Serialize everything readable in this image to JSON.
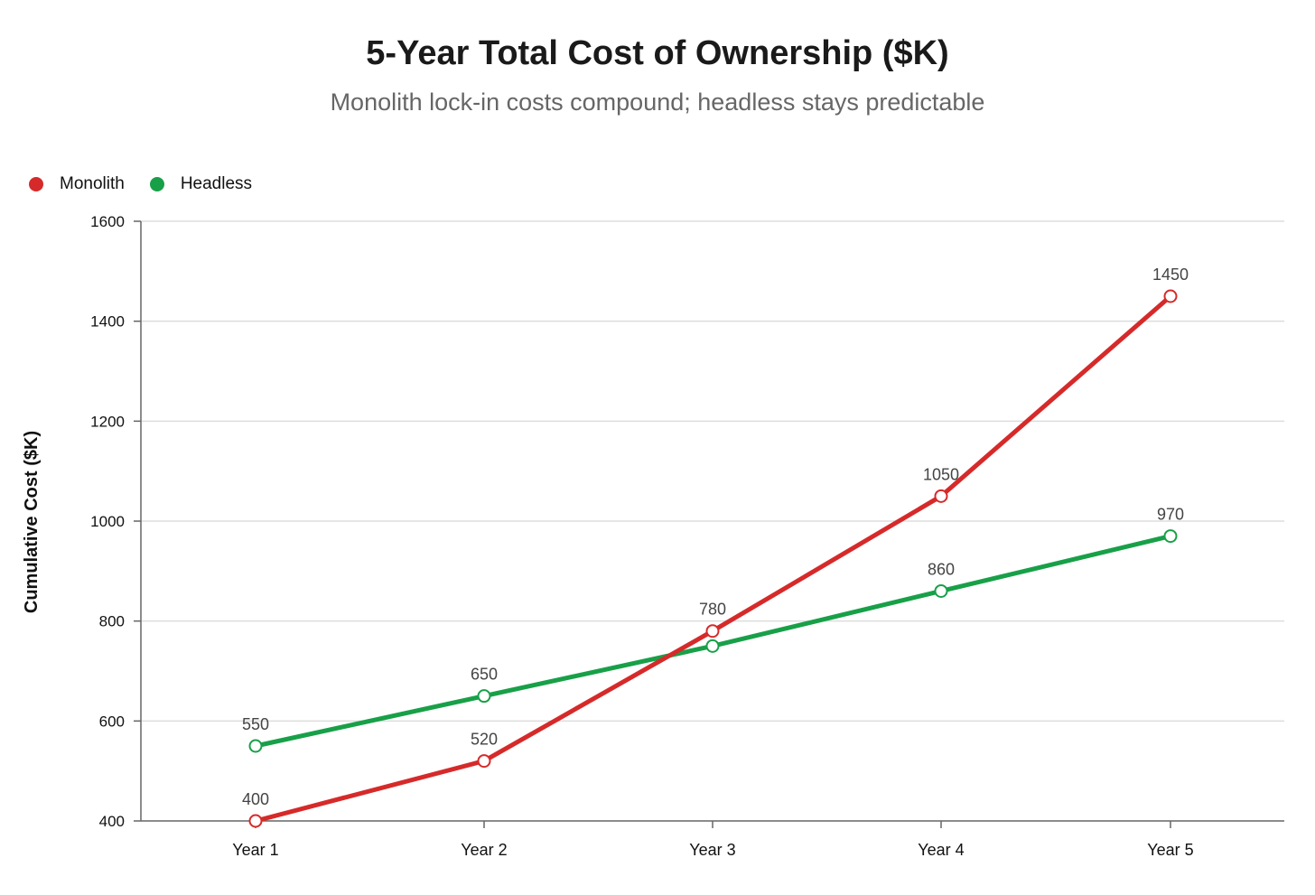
{
  "colors": {
    "monolith": "#d62a2a",
    "headless": "#18a048",
    "grid": "#dddddd",
    "axis": "#666666"
  },
  "chart_data": {
    "type": "line",
    "title": "5-Year Total Cost of Ownership ($K)",
    "subtitle": "Monolith lock-in costs compound; headless stays predictable",
    "ylabel": "Cumulative Cost ($K)",
    "xlabel": "",
    "categories": [
      "Year 1",
      "Year 2",
      "Year 3",
      "Year 4",
      "Year 5"
    ],
    "ylim": [
      400,
      1600
    ],
    "yticks": [
      400,
      600,
      800,
      1000,
      1200,
      1400,
      1600
    ],
    "grid": true,
    "legend_position": "top-left",
    "series": [
      {
        "name": "Monolith",
        "key": "monolith",
        "values": [
          400,
          520,
          780,
          1050,
          1450
        ]
      },
      {
        "name": "Headless",
        "key": "headless",
        "values": [
          550,
          650,
          750,
          860,
          970
        ]
      }
    ],
    "data_labels": {
      "monolith": [
        true,
        true,
        true,
        true,
        true
      ],
      "headless": [
        true,
        true,
        false,
        true,
        true
      ]
    }
  }
}
